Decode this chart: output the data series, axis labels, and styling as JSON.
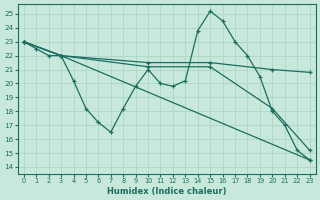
{
  "xlabel": "Humidex (Indice chaleur)",
  "xlim": [
    -0.5,
    23.5
  ],
  "ylim": [
    13.5,
    25.7
  ],
  "yticks": [
    14,
    15,
    16,
    17,
    18,
    19,
    20,
    21,
    22,
    23,
    24,
    25
  ],
  "xticks": [
    0,
    1,
    2,
    3,
    4,
    5,
    6,
    7,
    8,
    9,
    10,
    11,
    12,
    13,
    14,
    15,
    16,
    17,
    18,
    19,
    20,
    21,
    22,
    23
  ],
  "bg_color": "#c8e8dc",
  "line_color": "#1a6e5e",
  "grid_color": "#b0d8c8",
  "lines": [
    {
      "x": [
        0,
        1,
        2,
        3,
        4,
        5,
        6,
        7,
        8,
        9,
        10,
        11,
        12,
        13,
        14,
        15,
        16,
        17,
        18,
        19,
        20,
        21,
        22,
        23
      ],
      "y": [
        23,
        22.5,
        22,
        22,
        20.2,
        18.2,
        17.2,
        16.5,
        18.2,
        19.8,
        21,
        20,
        19.8,
        20.2,
        23.8,
        25.2,
        24.5,
        23,
        22,
        20.5,
        18,
        17,
        15.2,
        14.5
      ]
    },
    {
      "x": [
        0,
        3,
        10,
        15,
        20,
        23
      ],
      "y": [
        23,
        22,
        21.5,
        21.5,
        21,
        20.8
      ]
    },
    {
      "x": [
        0,
        3,
        10,
        15,
        20,
        23
      ],
      "y": [
        23,
        22,
        21.2,
        21.2,
        18.2,
        15.2
      ]
    },
    {
      "x": [
        0,
        3,
        23
      ],
      "y": [
        23,
        22,
        14.5
      ]
    }
  ]
}
